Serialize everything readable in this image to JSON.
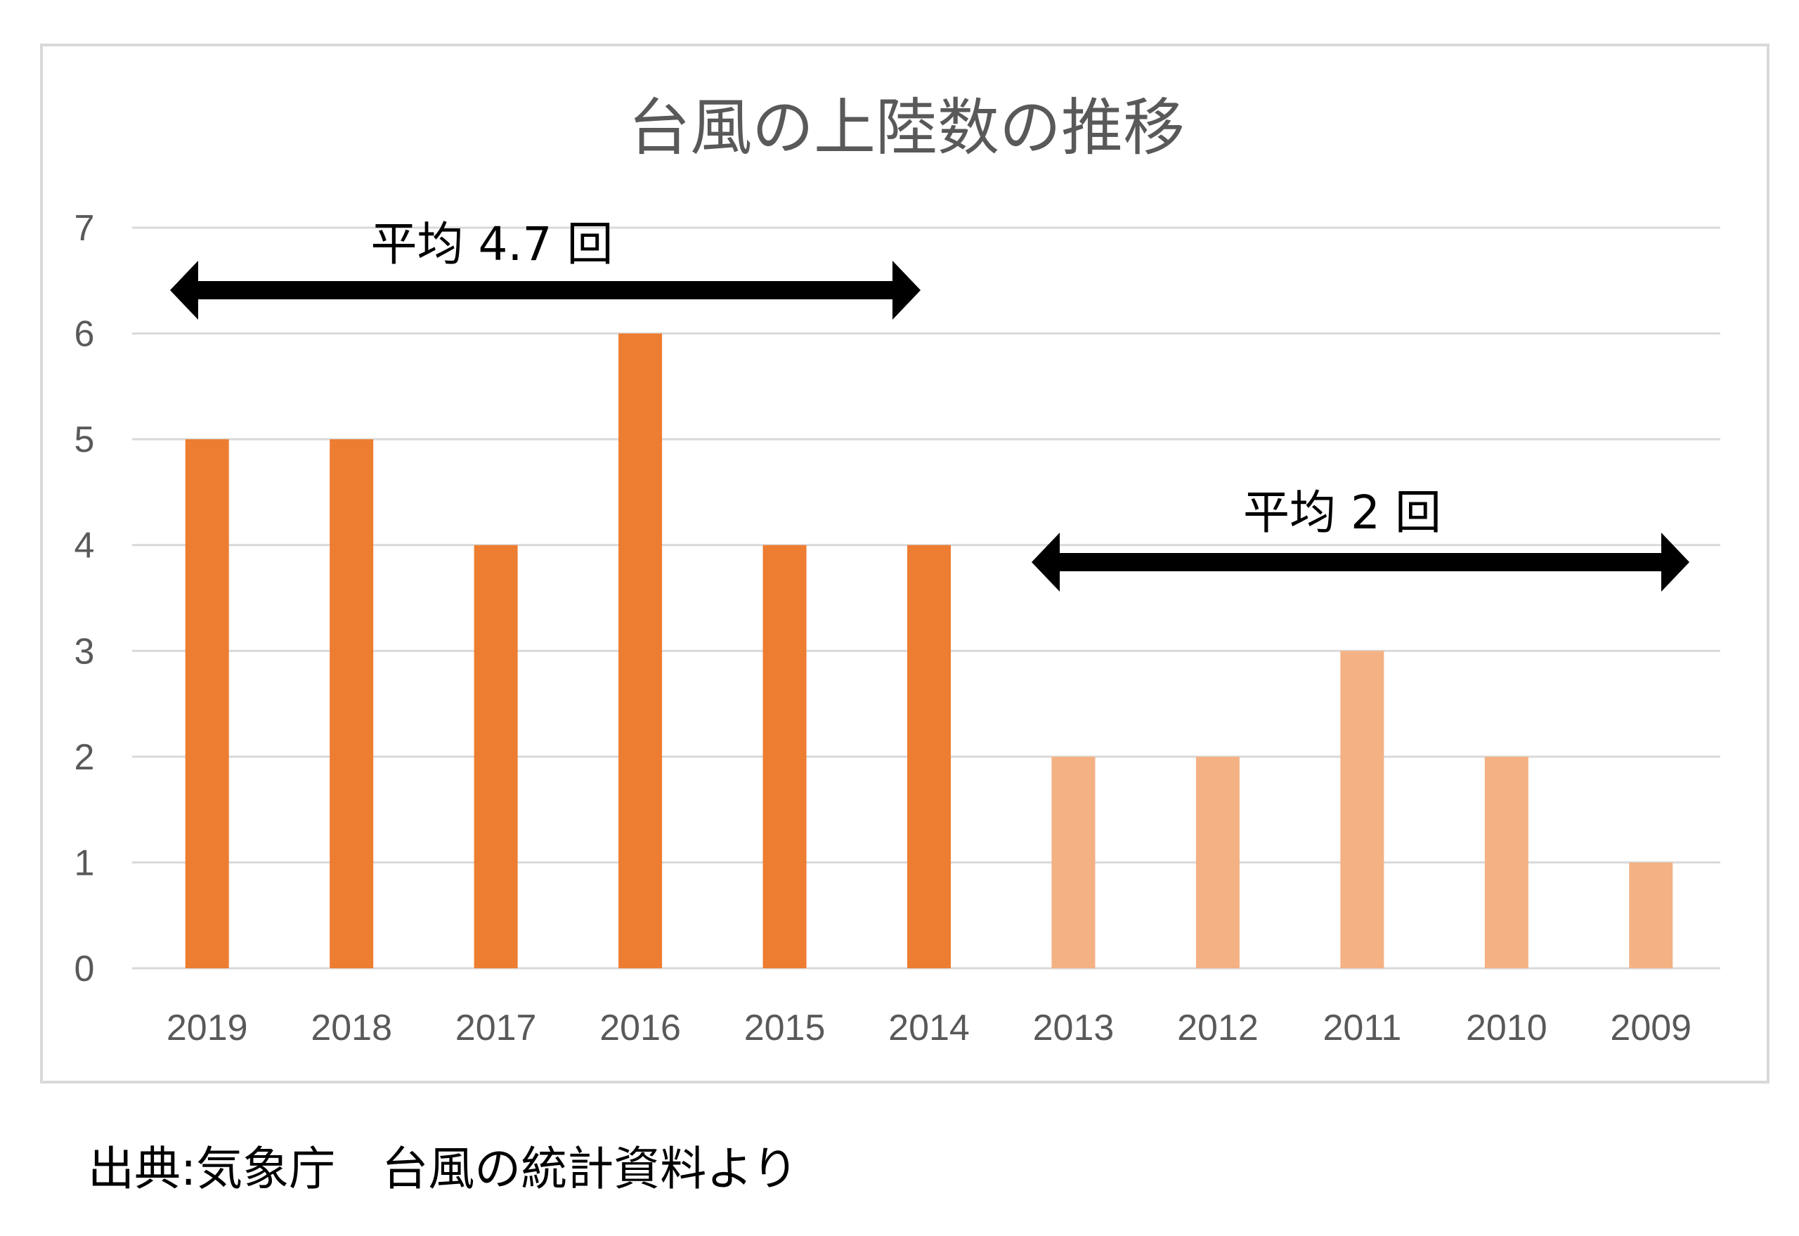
{
  "chart_data": {
    "type": "bar",
    "title": "台風の上陸数の推移",
    "categories": [
      "2019",
      "2018",
      "2017",
      "2016",
      "2015",
      "2014",
      "2013",
      "2012",
      "2011",
      "2010",
      "2009"
    ],
    "values": [
      5,
      5,
      4,
      6,
      4,
      4,
      2,
      2,
      3,
      2,
      1
    ],
    "ylim": [
      0,
      7
    ],
    "yticks": [
      "0",
      "1",
      "2",
      "3",
      "4",
      "5",
      "6",
      "7"
    ],
    "grid": true,
    "colors": {
      "recent": "#ED7D31",
      "older": "#F4B183",
      "grid": "#d9d9d9",
      "text": "#595959"
    },
    "annotations": [
      {
        "text": "平均 4.7 回",
        "from": "2019",
        "to": "2014"
      },
      {
        "text": "平均 2 回",
        "from": "2013",
        "to": "2009"
      }
    ]
  },
  "source": "出典:気象庁　台風の統計資料より"
}
